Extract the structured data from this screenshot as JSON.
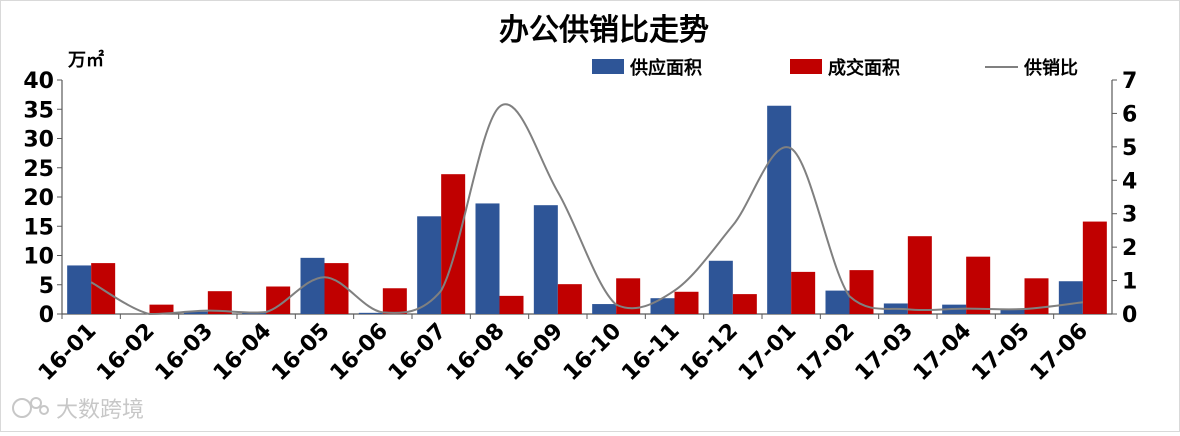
{
  "chart_data": {
    "type": "bar",
    "title": "办公供销比走势",
    "ylabel": "万㎡",
    "ylim": [
      0,
      40
    ],
    "y2lim": [
      0,
      7
    ],
    "yticks": [
      0,
      5,
      10,
      15,
      20,
      25,
      30,
      35,
      40
    ],
    "y2ticks": [
      0,
      1,
      2,
      3,
      4,
      5,
      6,
      7
    ],
    "grid": false,
    "legend_position": "top",
    "categories": [
      "16-01",
      "16-02",
      "16-03",
      "16-04",
      "16-05",
      "16-06",
      "16-07",
      "16-08",
      "16-09",
      "16-10",
      "16-11",
      "16-12",
      "17-01",
      "17-02",
      "17-03",
      "17-04",
      "17-05",
      "17-06"
    ],
    "series": [
      {
        "name": "供应面积",
        "type": "bar",
        "axis": "left",
        "color": "#2E5597",
        "values": [
          8.3,
          0,
          0.4,
          0.3,
          9.6,
          0.2,
          16.7,
          18.9,
          18.6,
          1.7,
          2.7,
          9.1,
          35.6,
          4.0,
          1.8,
          1.6,
          0.9,
          5.6
        ]
      },
      {
        "name": "成交面积",
        "type": "bar",
        "axis": "left",
        "color": "#C00000",
        "values": [
          8.7,
          1.6,
          3.9,
          4.7,
          8.7,
          4.4,
          23.9,
          3.1,
          5.1,
          6.1,
          3.8,
          3.4,
          7.2,
          7.5,
          13.3,
          9.8,
          6.1,
          15.8
        ]
      },
      {
        "name": "供销比",
        "type": "line",
        "axis": "right",
        "color": "#808080",
        "values": [
          0.95,
          0.0,
          0.1,
          0.06,
          1.1,
          0.05,
          0.7,
          6.2,
          3.65,
          0.28,
          0.7,
          2.65,
          4.95,
          0.53,
          0.14,
          0.16,
          0.15,
          0.35
        ]
      }
    ]
  },
  "watermark": "大数跨境"
}
